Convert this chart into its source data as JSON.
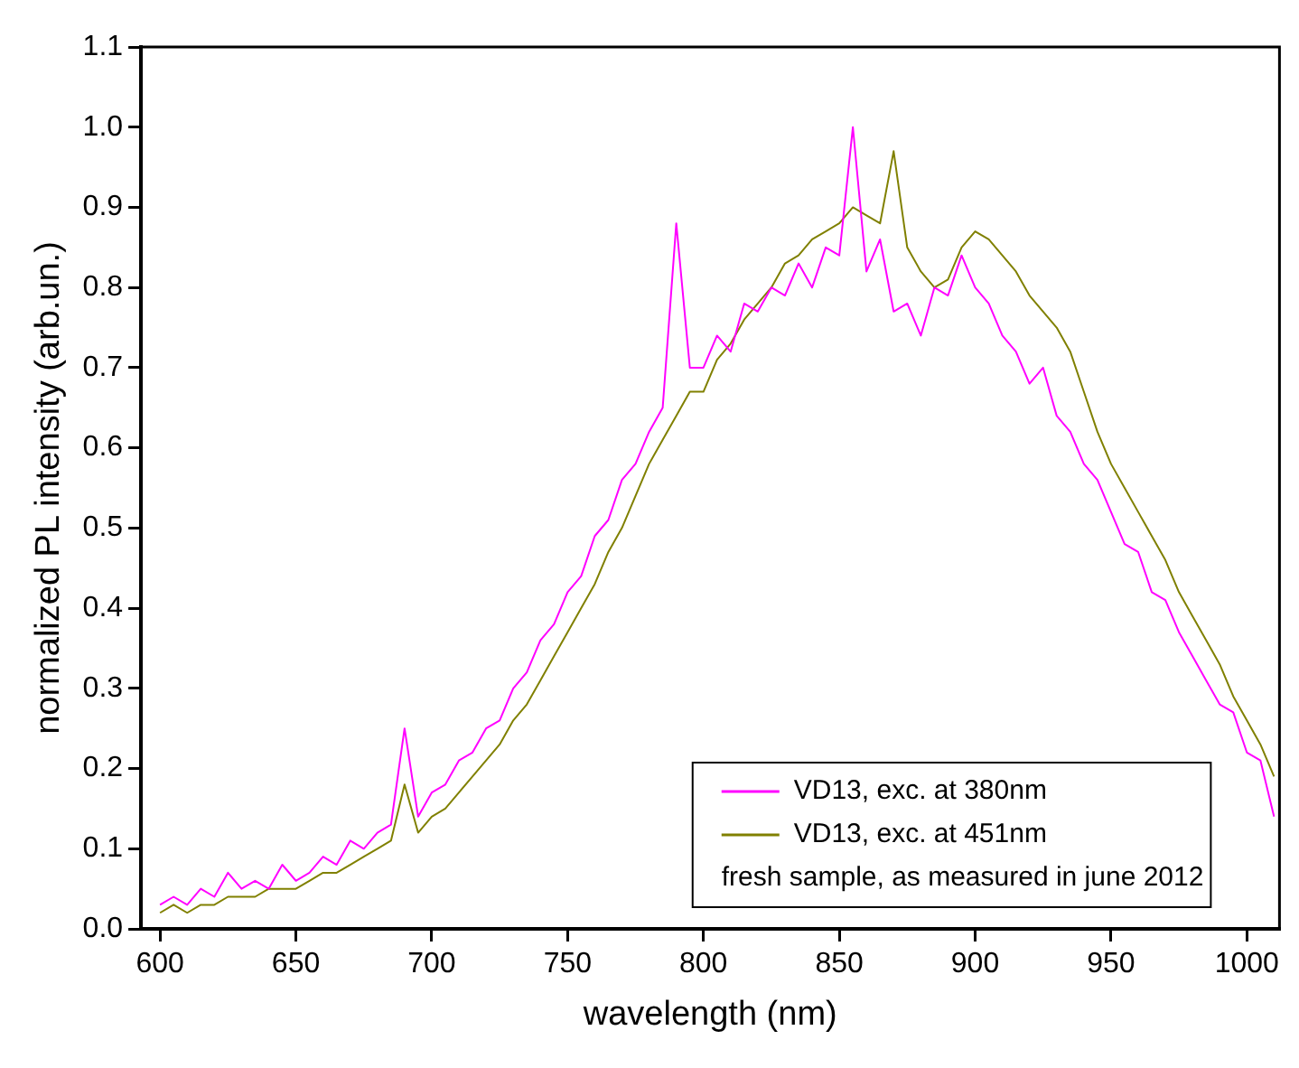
{
  "chart_data": {
    "type": "line",
    "xlabel": "wavelength (nm)",
    "ylabel": "normalized PL intensity (arb.un.)",
    "x": [
      600,
      605,
      610,
      615,
      620,
      625,
      630,
      635,
      640,
      645,
      650,
      655,
      660,
      665,
      670,
      675,
      680,
      685,
      690,
      695,
      700,
      705,
      710,
      715,
      720,
      725,
      730,
      735,
      740,
      745,
      750,
      755,
      760,
      765,
      770,
      775,
      780,
      785,
      790,
      795,
      800,
      805,
      810,
      815,
      820,
      825,
      830,
      835,
      840,
      845,
      850,
      855,
      860,
      865,
      870,
      875,
      880,
      885,
      890,
      895,
      900,
      905,
      910,
      915,
      920,
      925,
      930,
      935,
      940,
      945,
      950,
      955,
      960,
      965,
      970,
      975,
      980,
      985,
      990,
      995,
      1000,
      1005,
      1010
    ],
    "series": [
      {
        "name": "VD13, exc. at 380nm",
        "color": "#ff00ff",
        "values": [
          0.03,
          0.04,
          0.03,
          0.05,
          0.04,
          0.07,
          0.05,
          0.06,
          0.05,
          0.08,
          0.06,
          0.07,
          0.09,
          0.08,
          0.11,
          0.1,
          0.12,
          0.13,
          0.25,
          0.14,
          0.17,
          0.18,
          0.21,
          0.22,
          0.25,
          0.26,
          0.3,
          0.32,
          0.36,
          0.38,
          0.42,
          0.44,
          0.49,
          0.51,
          0.56,
          0.58,
          0.62,
          0.65,
          0.88,
          0.7,
          0.7,
          0.74,
          0.72,
          0.78,
          0.77,
          0.8,
          0.79,
          0.83,
          0.8,
          0.85,
          0.84,
          1.0,
          0.82,
          0.86,
          0.77,
          0.78,
          0.74,
          0.8,
          0.79,
          0.84,
          0.8,
          0.78,
          0.74,
          0.72,
          0.68,
          0.7,
          0.64,
          0.62,
          0.58,
          0.56,
          0.52,
          0.48,
          0.47,
          0.42,
          0.41,
          0.37,
          0.34,
          0.31,
          0.28,
          0.27,
          0.22,
          0.21,
          0.14
        ]
      },
      {
        "name": "VD13, exc. at 451nm",
        "color": "#808000",
        "values": [
          0.02,
          0.03,
          0.02,
          0.03,
          0.03,
          0.04,
          0.04,
          0.04,
          0.05,
          0.05,
          0.05,
          0.06,
          0.07,
          0.07,
          0.08,
          0.09,
          0.1,
          0.11,
          0.18,
          0.12,
          0.14,
          0.15,
          0.17,
          0.19,
          0.21,
          0.23,
          0.26,
          0.28,
          0.31,
          0.34,
          0.37,
          0.4,
          0.43,
          0.47,
          0.5,
          0.54,
          0.58,
          0.61,
          0.64,
          0.67,
          0.67,
          0.71,
          0.73,
          0.76,
          0.78,
          0.8,
          0.83,
          0.84,
          0.86,
          0.87,
          0.88,
          0.9,
          0.89,
          0.88,
          0.97,
          0.85,
          0.82,
          0.8,
          0.81,
          0.85,
          0.87,
          0.86,
          0.84,
          0.82,
          0.79,
          0.77,
          0.75,
          0.72,
          0.67,
          0.62,
          0.58,
          0.55,
          0.52,
          0.49,
          0.46,
          0.42,
          0.39,
          0.36,
          0.33,
          0.29,
          0.26,
          0.23,
          0.19
        ]
      }
    ],
    "xlim": [
      593,
      1012
    ],
    "xticks": [
      600,
      650,
      700,
      750,
      800,
      850,
      900,
      950,
      1000
    ],
    "ylim": [
      0,
      1.1
    ],
    "yticks": [
      {
        "value": 0,
        "label": "0.0"
      },
      {
        "value": 0.1,
        "label": "0.1"
      },
      {
        "value": 0.2,
        "label": "0.2"
      },
      {
        "value": 0.3,
        "label": "0.3"
      },
      {
        "value": 0.4,
        "label": "0.4"
      },
      {
        "value": 0.5,
        "label": "0.5"
      },
      {
        "value": 0.6,
        "label": "0.6"
      },
      {
        "value": 0.7,
        "label": "0.7"
      },
      {
        "value": 0.8,
        "label": "0.8"
      },
      {
        "value": 0.9,
        "label": "0.9"
      },
      {
        "value": 1.0,
        "label": "1.0"
      },
      {
        "value": 1.1,
        "label": "1.1"
      }
    ],
    "grid": false,
    "legend": "bottom right",
    "marker": "none",
    "line_style": "solid",
    "annotations": [
      "fresh sample, as measured in june 2012"
    ]
  }
}
